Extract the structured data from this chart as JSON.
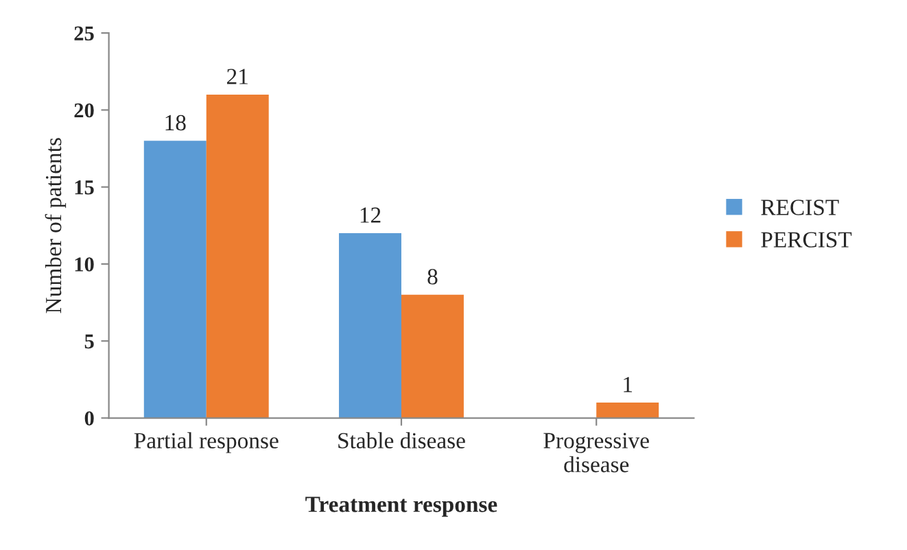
{
  "chart_data": {
    "type": "bar",
    "xlabel": "Treatment response",
    "ylabel": "Number of patients",
    "categories": [
      "Partial response",
      "Stable disease",
      "Progressive\ndisease"
    ],
    "series": [
      {
        "name": "RECIST",
        "color": "#5b9bd5",
        "values": [
          18,
          12,
          null
        ],
        "value_labels": [
          "18",
          "12",
          null
        ]
      },
      {
        "name": "PERCIST",
        "color": "#ed7d31",
        "values": [
          21,
          8,
          1
        ],
        "value_labels": [
          "21",
          "8",
          "1"
        ]
      }
    ],
    "ylim": [
      0,
      25
    ],
    "yticks": [
      0,
      5,
      10,
      15,
      20,
      25
    ],
    "grid": false,
    "legend": "right"
  }
}
